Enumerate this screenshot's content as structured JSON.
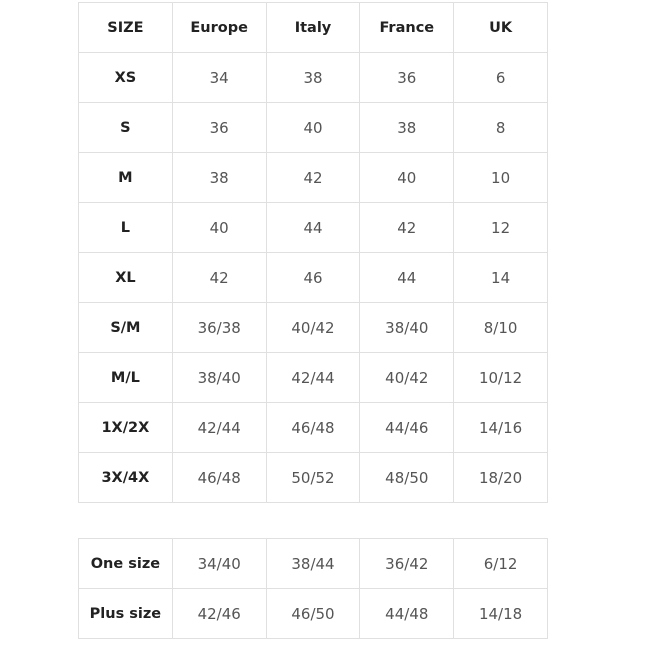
{
  "tables": [
    {
      "header": [
        "SIZE",
        "Europe",
        "Italy",
        "France",
        "UK"
      ],
      "rows": [
        [
          "XS",
          "34",
          "38",
          "36",
          "6"
        ],
        [
          "S",
          "36",
          "40",
          "38",
          "8"
        ],
        [
          "M",
          "38",
          "42",
          "40",
          "10"
        ],
        [
          "L",
          "40",
          "44",
          "42",
          "12"
        ],
        [
          "XL",
          "42",
          "46",
          "44",
          "14"
        ],
        [
          "S/M",
          "36/38",
          "40/42",
          "38/40",
          "8/10"
        ],
        [
          "M/L",
          "38/40",
          "42/44",
          "40/42",
          "10/12"
        ],
        [
          "1X/2X",
          "42/44",
          "46/48",
          "44/46",
          "14/16"
        ],
        [
          "3X/4X",
          "46/48",
          "50/52",
          "48/50",
          "18/20"
        ]
      ]
    },
    {
      "rows": [
        [
          "One size",
          "34/40",
          "38/44",
          "36/42",
          "6/12"
        ],
        [
          "Plus size",
          "42/46",
          "46/50",
          "44/48",
          "14/18"
        ]
      ]
    }
  ]
}
